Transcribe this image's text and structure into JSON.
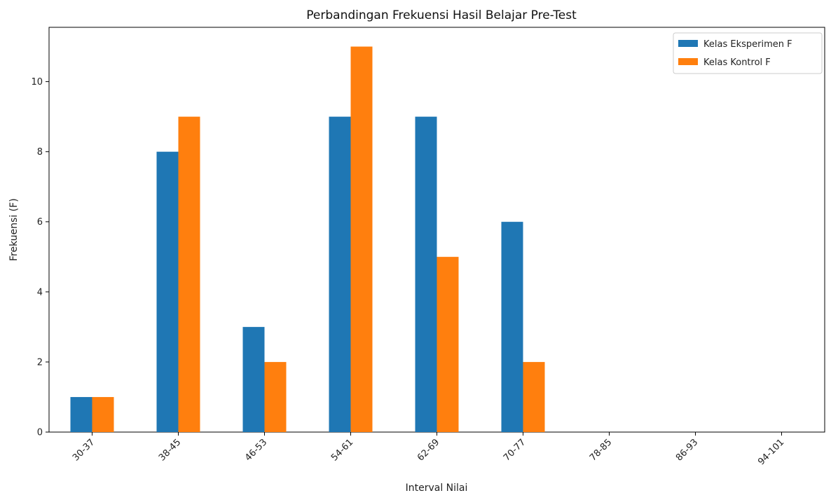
{
  "chart_data": {
    "type": "bar",
    "title": "Perbandingan Frekuensi Hasil Belajar Pre-Test",
    "xlabel": "Interval Nilai",
    "ylabel": "Frekuensi (F)",
    "categories": [
      "30-37",
      "38-45",
      "46-53",
      "54-61",
      "62-69",
      "70-77",
      "78-85",
      "86-93",
      "94-101"
    ],
    "series": [
      {
        "name": "Kelas Eksperimen F",
        "values": [
          1,
          8,
          3,
          9,
          9,
          6,
          0,
          0,
          0
        ],
        "color": "#1f77b4"
      },
      {
        "name": "Kelas Kontrol F",
        "values": [
          1,
          9,
          2,
          11,
          5,
          2,
          0,
          0,
          0
        ],
        "color": "#ff7f0e"
      }
    ],
    "ylim": [
      0,
      11.55
    ],
    "yticks": [
      0,
      2,
      4,
      6,
      8,
      10
    ],
    "grid": false,
    "legend_position": "top-right"
  }
}
